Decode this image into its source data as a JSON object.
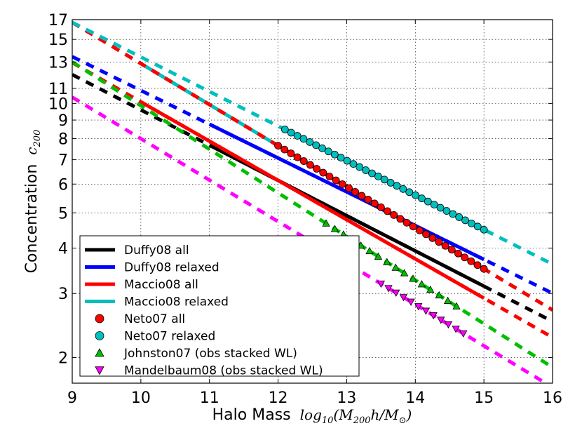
{
  "chart_data": {
    "type": "line",
    "title": "",
    "xlabel": "Halo Mass",
    "xlabel_math": "log10(M200 h / M⊙)",
    "ylabel": "Concentration",
    "ylabel_math": "c200",
    "xlim": [
      9,
      16
    ],
    "ylim": [
      1.7,
      17
    ],
    "y_scale": "log",
    "grid": true,
    "legend_position": "lower-left",
    "x_ticks": [
      "9",
      "10",
      "11",
      "12",
      "13",
      "14",
      "15",
      "16"
    ],
    "y_ticks": [
      "2",
      "3",
      "4",
      "5",
      "6",
      "7",
      "8",
      "9",
      "10",
      "11",
      "13",
      "15",
      "17"
    ],
    "series": [
      {
        "name": "Duffy08 all",
        "color": "#000000",
        "marker": "line",
        "solid_x": [
          11,
          15
        ],
        "c_at_9": 12.0,
        "slope": -0.097
      },
      {
        "name": "Duffy08 relaxed",
        "color": "#0000ff",
        "marker": "line",
        "solid_x": [
          11,
          15
        ],
        "c_at_9": 13.45,
        "slope": -0.093
      },
      {
        "name": "Maccio08 all",
        "color": "#ff0000",
        "marker": "line",
        "solid_x": [
          10,
          15
        ],
        "c_at_9": 12.95,
        "slope": -0.108
      },
      {
        "name": "Maccio08 relaxed",
        "color": "#00bfbf",
        "marker": "line",
        "solid_x": [
          10,
          15
        ],
        "c_at_9": 16.7,
        "slope": -0.113
      },
      {
        "name": "Neto07 all",
        "color": "#ff0000",
        "marker": "circle",
        "x_range": [
          12,
          15
        ],
        "n": 33,
        "c_at_9": 16.7,
        "slope": -0.113
      },
      {
        "name": "Neto07 relaxed",
        "color": "#00bfbf",
        "marker": "circle",
        "x_range": [
          12.1,
          15
        ],
        "n": 33,
        "c_at_9": 16.7,
        "slope": -0.095
      },
      {
        "name": "Johnston07 (obs stacked WL)",
        "color": "#00bf00",
        "marker": "triangle-up",
        "x_range": [
          12.7,
          14.6
        ],
        "n": 16,
        "c_at_9": 13.0,
        "slope": -0.12
      },
      {
        "name": "Mandelbaum08 (obs stacked WL)",
        "color": "#ff00ff",
        "marker": "triangle-down",
        "x_range": [
          13.5,
          14.7
        ],
        "n": 12,
        "c_at_9": 10.4,
        "slope": -0.114
      }
    ]
  }
}
